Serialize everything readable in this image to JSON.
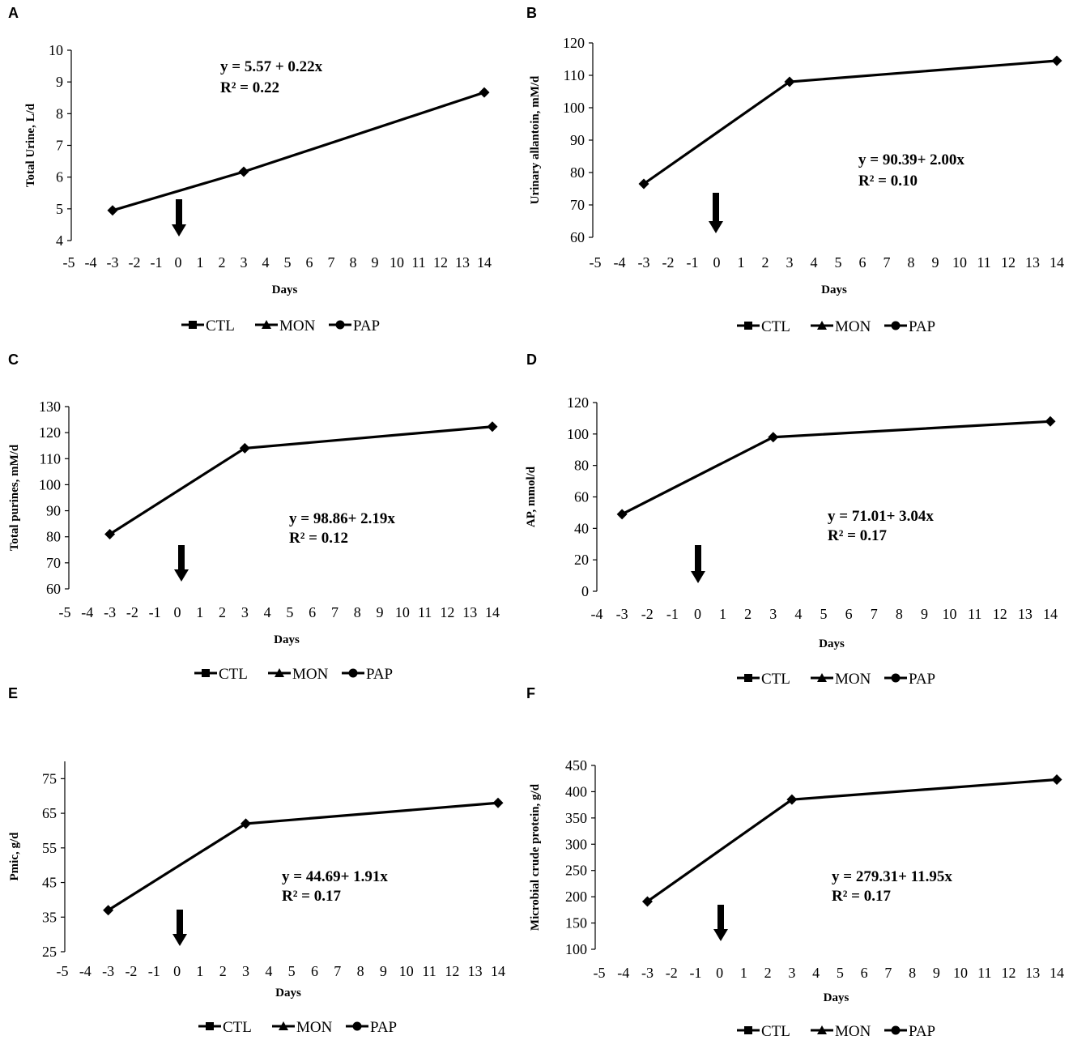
{
  "chart_data": [
    {
      "type": "line",
      "panel": "A",
      "xlabel": "Days",
      "ylabel": "Total Urine, L/d",
      "ylim": [
        4,
        10
      ],
      "yticks": [
        4,
        5,
        6,
        7,
        8,
        9,
        10
      ],
      "xticks": [
        "-5",
        "-4",
        "-3",
        "-2",
        "-1",
        "0",
        "1",
        "2",
        "3",
        "4",
        "5",
        "6",
        "7",
        "8",
        "9",
        "10",
        "11",
        "12",
        "13",
        "14"
      ],
      "series": [
        {
          "name": "PAP",
          "x": [
            -3,
            3,
            14
          ],
          "y": [
            4.95,
            6.17,
            8.67
          ]
        }
      ],
      "equation": "y = 5.57 + 0.22x",
      "r2": "R² = 0.22",
      "arrow_at": "0",
      "legend": [
        "CTL",
        "MON",
        "PAP"
      ]
    },
    {
      "type": "line",
      "panel": "B",
      "xlabel": "Days",
      "ylabel": "Urinary allantoin, mM/d",
      "ylim": [
        60,
        120
      ],
      "yticks": [
        60,
        70,
        80,
        90,
        100,
        110,
        120
      ],
      "xticks": [
        "-5",
        "-4",
        "-3",
        "-2",
        "-1",
        "0",
        "1",
        "2",
        "3",
        "4",
        "5",
        "6",
        "7",
        "8",
        "9",
        "10",
        "11",
        "12",
        "13",
        "14"
      ],
      "series": [
        {
          "name": "PAP",
          "x": [
            -3,
            3,
            14
          ],
          "y": [
            76.5,
            108.0,
            114.5
          ]
        }
      ],
      "equation": "y = 90.39+ 2.00x",
      "r2": "R² = 0.10",
      "arrow_at": "0",
      "legend": [
        "CTL",
        "MON",
        "PAP"
      ]
    },
    {
      "type": "line",
      "panel": "C",
      "xlabel": "Days",
      "ylabel": "Total purines, mM/d",
      "ylim": [
        60,
        130
      ],
      "yticks": [
        60,
        70,
        80,
        90,
        100,
        110,
        120,
        130
      ],
      "xticks": [
        "-5",
        "-4",
        "-3",
        "-2",
        "-1",
        "0",
        "1",
        "2",
        "3",
        "4",
        "5",
        "6",
        "7",
        "8",
        "9",
        "10",
        "11",
        "12",
        "13",
        "14"
      ],
      "series": [
        {
          "name": "PAP",
          "x": [
            -3,
            3,
            14
          ],
          "y": [
            81.0,
            114.0,
            122.3
          ]
        }
      ],
      "equation": "y = 98.86+ 2.19x",
      "r2": "R² = 0.12",
      "arrow_at": "0",
      "legend": [
        "CTL",
        "MON",
        "PAP"
      ]
    },
    {
      "type": "line",
      "panel": "D",
      "xlabel": "Days",
      "ylabel": "AP, mmol/d",
      "ylim": [
        0,
        120
      ],
      "yticks": [
        0,
        20,
        40,
        60,
        80,
        100,
        120
      ],
      "xticks": [
        "-4",
        "-3",
        "-2",
        "-1",
        "0",
        "1",
        "2",
        "3",
        "4",
        "5",
        "6",
        "7",
        "8",
        "9",
        "10",
        "11",
        "12",
        "13",
        "14"
      ],
      "series": [
        {
          "name": "PAP",
          "x": [
            -3,
            3,
            14
          ],
          "y": [
            49.0,
            98.0,
            108.0
          ]
        }
      ],
      "equation": "y = 71.01+ 3.04x",
      "r2": "R² = 0.17",
      "arrow_at": "0",
      "legend": [
        "CTL",
        "MON",
        "PAP"
      ]
    },
    {
      "type": "line",
      "panel": "E",
      "xlabel": "Days",
      "ylabel": "Pmic, g/d",
      "ylim": [
        25,
        80
      ],
      "yticks": [
        25,
        35,
        45,
        55,
        65,
        75
      ],
      "xticks": [
        "-5",
        "-4",
        "-3",
        "-2",
        "-1",
        "0",
        "1",
        "2",
        "3",
        "4",
        "5",
        "6",
        "7",
        "8",
        "9",
        "10",
        "11",
        "12",
        "13",
        "14"
      ],
      "series": [
        {
          "name": "PAP",
          "x": [
            -3,
            3,
            14
          ],
          "y": [
            37.0,
            62.0,
            68.0
          ]
        }
      ],
      "equation": "y = 44.69+ 1.91x",
      "r2": "R² = 0.17",
      "arrow_at": "0",
      "legend": [
        "CTL",
        "MON",
        "PAP"
      ]
    },
    {
      "type": "line",
      "panel": "F",
      "xlabel": "Days",
      "ylabel": "Microbial crude protein, g/d",
      "ylim": [
        100,
        450
      ],
      "yticks": [
        100,
        150,
        200,
        250,
        300,
        350,
        400,
        450
      ],
      "xticks": [
        "-5",
        "-4",
        "-3",
        "-2",
        "-1",
        "0",
        "1",
        "2",
        "3",
        "4",
        "5",
        "6",
        "7",
        "8",
        "9",
        "10",
        "11",
        "12",
        "13",
        "14"
      ],
      "series": [
        {
          "name": "PAP",
          "x": [
            -3,
            3,
            14
          ],
          "y": [
            191.0,
            385.0,
            423.0
          ]
        }
      ],
      "equation": "y = 279.31+ 11.95x",
      "r2": "R² = 0.17",
      "arrow_at": "0",
      "legend": [
        "CTL",
        "MON",
        "PAP"
      ]
    }
  ]
}
